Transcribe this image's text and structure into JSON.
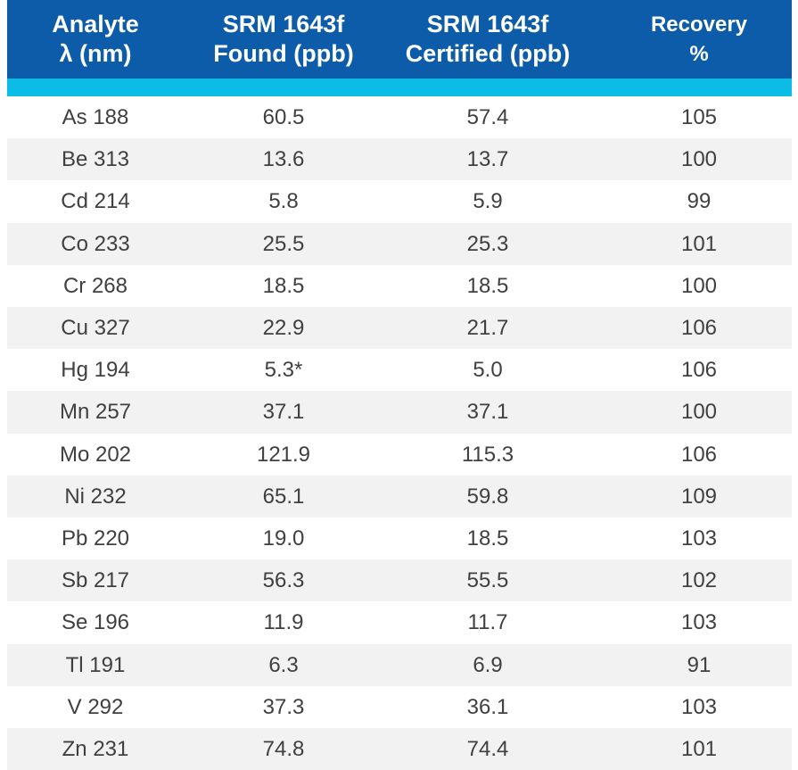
{
  "table": {
    "columns": [
      [
        "Analyte",
        "λ (nm)"
      ],
      [
        "SRM 1643f",
        "Found (ppb)"
      ],
      [
        "SRM 1643f",
        "Certified (ppb)"
      ],
      [
        "Recovery",
        "%"
      ]
    ],
    "rows": [
      [
        "As 188",
        "60.5",
        "57.4",
        "105"
      ],
      [
        "Be 313",
        "13.6",
        "13.7",
        "100"
      ],
      [
        "Cd 214",
        "5.8",
        "5.9",
        "99"
      ],
      [
        "Co 233",
        "25.5",
        "25.3",
        "101"
      ],
      [
        "Cr 268",
        "18.5",
        "18.5",
        "100"
      ],
      [
        "Cu 327",
        "22.9",
        "21.7",
        "106"
      ],
      [
        "Hg 194",
        "5.3*",
        "5.0",
        "106"
      ],
      [
        "Mn 257",
        "37.1",
        "37.1",
        "100"
      ],
      [
        "Mo 202",
        "121.9",
        "115.3",
        "106"
      ],
      [
        "Ni 232",
        "65.1",
        "59.8",
        "109"
      ],
      [
        "Pb 220",
        "19.0",
        "18.5",
        "103"
      ],
      [
        "Sb 217",
        "56.3",
        "55.5",
        "102"
      ],
      [
        "Se 196",
        "11.9",
        "11.7",
        "103"
      ],
      [
        "Tl 191",
        "6.3",
        "6.9",
        "91"
      ],
      [
        "V 292",
        "37.3",
        "36.1",
        "103"
      ],
      [
        "Zn 231",
        "74.8",
        "74.4",
        "101"
      ]
    ]
  }
}
